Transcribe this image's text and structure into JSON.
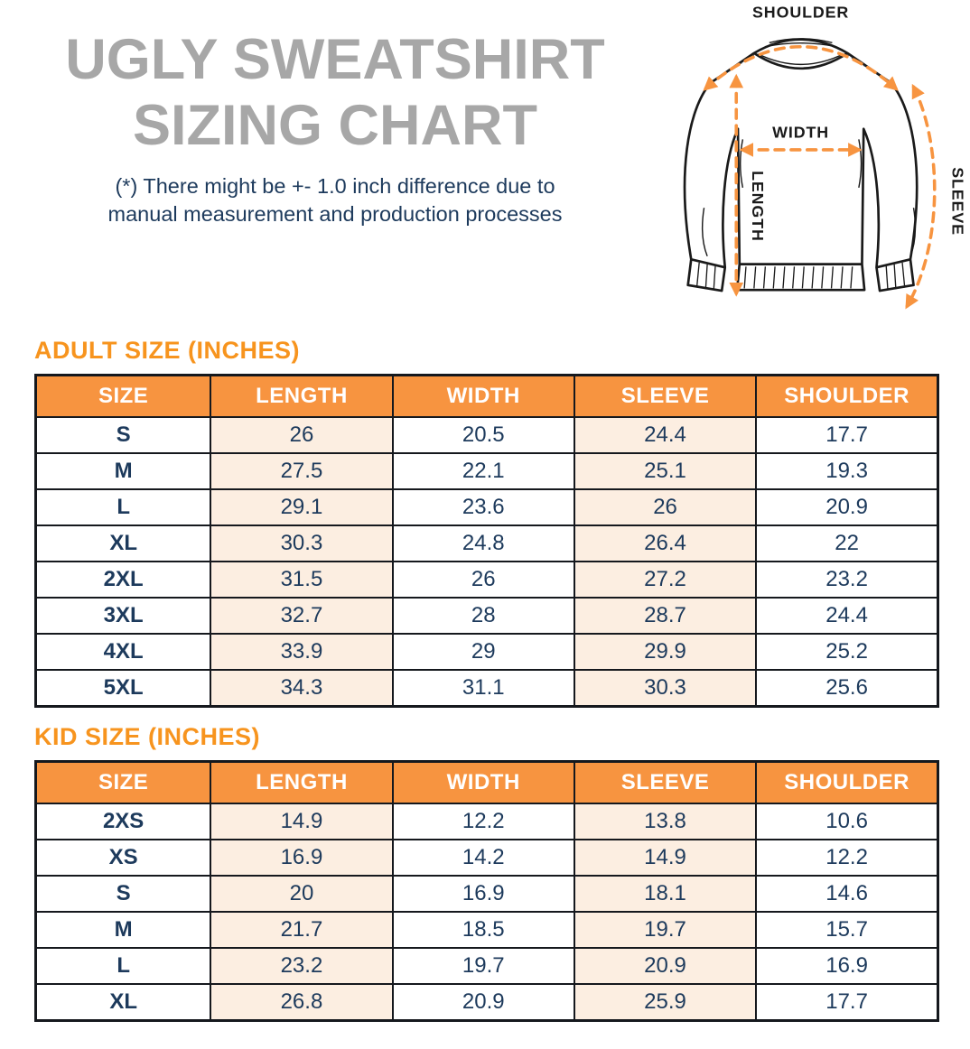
{
  "colors": {
    "accent_orange": "#F7941E",
    "table_header_orange": "#F79440",
    "stripe_peach": "#FCEEE1",
    "text_navy": "#1D3A5C",
    "title_gray": "#A7A7A7",
    "table_border": "#15181D",
    "diagram_line_black": "#1A1A1A"
  },
  "header": {
    "title_line1": "UGLY SWEATSHIRT",
    "title_line2": "SIZING CHART",
    "note_line1": "(*) There might be +- 1.0 inch difference due to",
    "note_line2": "manual measurement and production processes"
  },
  "diagram": {
    "labels": {
      "shoulder": "SHOULDER",
      "width": "WIDTH",
      "length": "LENGTH",
      "sleeve": "SLEEVE"
    }
  },
  "adult_table": {
    "heading": "ADULT SIZE (INCHES)",
    "columns": [
      "SIZE",
      "LENGTH",
      "WIDTH",
      "SLEEVE",
      "SHOULDER"
    ],
    "rows": [
      [
        "S",
        "26",
        "20.5",
        "24.4",
        "17.7"
      ],
      [
        "M",
        "27.5",
        "22.1",
        "25.1",
        "19.3"
      ],
      [
        "L",
        "29.1",
        "23.6",
        "26",
        "20.9"
      ],
      [
        "XL",
        "30.3",
        "24.8",
        "26.4",
        "22"
      ],
      [
        "2XL",
        "31.5",
        "26",
        "27.2",
        "23.2"
      ],
      [
        "3XL",
        "32.7",
        "28",
        "28.7",
        "24.4"
      ],
      [
        "4XL",
        "33.9",
        "29",
        "29.9",
        "25.2"
      ],
      [
        "5XL",
        "34.3",
        "31.1",
        "30.3",
        "25.6"
      ]
    ]
  },
  "kid_table": {
    "heading": "KID SIZE (INCHES)",
    "columns": [
      "SIZE",
      "LENGTH",
      "WIDTH",
      "SLEEVE",
      "SHOULDER"
    ],
    "rows": [
      [
        "2XS",
        "14.9",
        "12.2",
        "13.8",
        "10.6"
      ],
      [
        "XS",
        "16.9",
        "14.2",
        "14.9",
        "12.2"
      ],
      [
        "S",
        "20",
        "16.9",
        "18.1",
        "14.6"
      ],
      [
        "M",
        "21.7",
        "18.5",
        "19.7",
        "15.7"
      ],
      [
        "L",
        "23.2",
        "19.7",
        "20.9",
        "16.9"
      ],
      [
        "XL",
        "26.8",
        "20.9",
        "25.9",
        "17.7"
      ]
    ]
  }
}
